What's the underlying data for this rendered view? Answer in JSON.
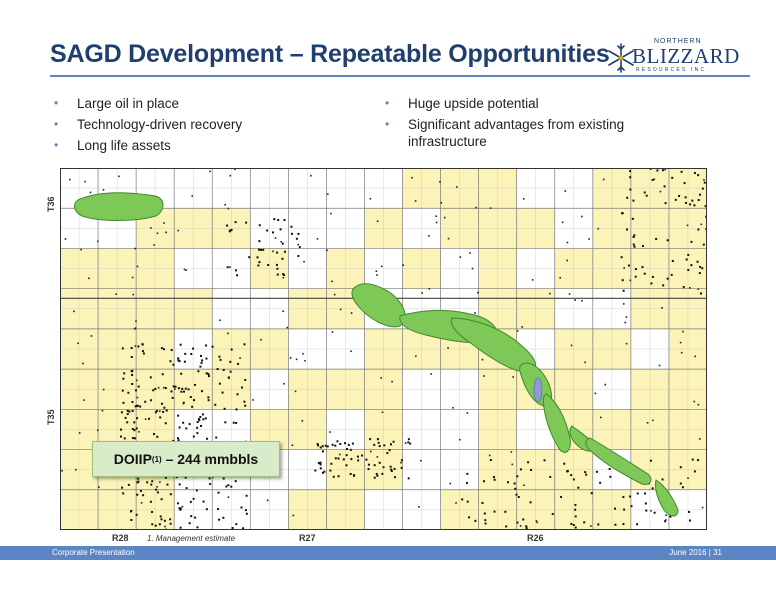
{
  "header": {
    "title": "SAGD Development – Repeatable Opportunities"
  },
  "logo": {
    "top_text": "NORTHERN",
    "main_text": "BLIZZARD",
    "sub_text": "RESOURCES INC.",
    "icon": "snowflake-icon"
  },
  "bullets_left": [
    "Large oil in place",
    "Technology-driven recovery",
    "Long life assets"
  ],
  "bullets_right": [
    "Huge upside potential",
    "Significant advantages from existing infrastructure"
  ],
  "map": {
    "township_labels": [
      "T36",
      "T35"
    ],
    "range_labels": [
      "R28",
      "R27",
      "R26"
    ],
    "footnote": "1. Management estimate",
    "callout": {
      "label": "DOIIP",
      "superscript": "(1)",
      "value": "– 244 mmbbls"
    },
    "colors": {
      "lease": "#fbf3b8",
      "development": "#7dc857",
      "development_edge": "#3f8a2a",
      "grid": "#c8c8c8",
      "section_line": "#777777"
    }
  },
  "footer": {
    "left": "Corporate Presentation",
    "date": "June 2016",
    "page": "31"
  }
}
